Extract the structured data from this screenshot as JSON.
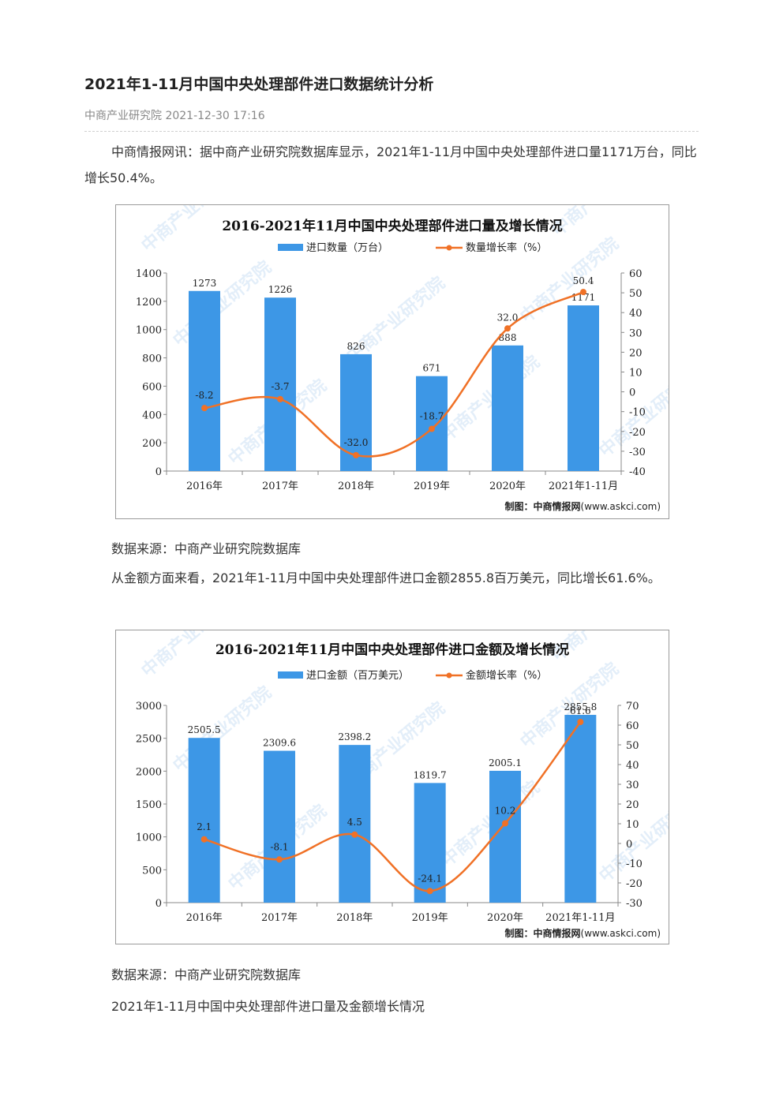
{
  "article": {
    "title": "2021年1-11月中国中央处理部件进口数据统计分析",
    "meta": "中商产业研究院 2021-12-30 17:16",
    "para1": "中商情报网讯：据中商产业研究院数据库显示，2021年1-11月中国中央处理部件进口量1171万台，同比增长50.4%。",
    "source1": "数据来源：中商产业研究院数据库",
    "para2": "从金额方面来看，2021年1-11月中国中央处理部件进口金额2855.8百万美元，同比增长61.6%。",
    "source2": "数据来源：中商产业研究院数据库",
    "caption": "2021年1-11月中国中央处理部件进口量及金额增长情况"
  },
  "colors": {
    "bar": "#3d97e6",
    "line": "#f07126",
    "marker": "#f07126"
  },
  "watermark": "中商产业研究院",
  "chart_data": [
    {
      "type": "bar",
      "title": "2016-2021年11月中国中央处理部件进口量及增长情况",
      "categories": [
        "2016年",
        "2017年",
        "2018年",
        "2019年",
        "2020年",
        "2021年1-11月"
      ],
      "series": [
        {
          "name": "进口数量（万台）",
          "type": "bar",
          "axis": "left",
          "values": [
            1273,
            1226,
            826,
            671,
            888,
            1171
          ],
          "labels": [
            "1273",
            "1226",
            "826",
            "671",
            "888",
            "1171"
          ]
        },
        {
          "name": "数量增长率（%）",
          "type": "line",
          "axis": "right",
          "values": [
            -8.2,
            -3.7,
            -32.0,
            -18.7,
            32.0,
            50.4
          ],
          "labels": [
            "-8.2",
            "-3.7",
            "-32.0",
            "-18.7",
            "32.0",
            "50.4"
          ]
        }
      ],
      "ylim": [
        0,
        1400
      ],
      "yticks": [
        "0",
        "200",
        "400",
        "600",
        "800",
        "1000",
        "1200",
        "1400"
      ],
      "y2lim": [
        -40,
        60
      ],
      "y2ticks": [
        "-40",
        "-30",
        "-20",
        "-10",
        "0",
        "10",
        "20",
        "30",
        "40",
        "50",
        "60"
      ],
      "legend_position": "top",
      "grid": false,
      "credit_prefix": "制图：中商情报网",
      "credit_suffix": "(www.askci.com)"
    },
    {
      "type": "bar",
      "title": "2016-2021年11月中国中央处理部件进口金额及增长情况",
      "categories": [
        "2016年",
        "2017年",
        "2018年",
        "2019年",
        "2020年",
        "2021年1-11月"
      ],
      "series": [
        {
          "name": "进口金额（百万美元）",
          "type": "bar",
          "axis": "left",
          "values": [
            2505.5,
            2309.6,
            2398.2,
            1819.7,
            2005.1,
            2855.8
          ],
          "labels": [
            "2505.5",
            "2309.6",
            "2398.2",
            "1819.7",
            "2005.1",
            "2855.8"
          ]
        },
        {
          "name": "金额增长率（%）",
          "type": "line",
          "axis": "right",
          "values": [
            2.1,
            -8.1,
            4.5,
            -24.1,
            10.2,
            61.6
          ],
          "labels": [
            "2.1",
            "-8.1",
            "4.5",
            "-24.1",
            "10.2",
            "61.6"
          ]
        }
      ],
      "ylim": [
        0,
        3000
      ],
      "yticks": [
        "0",
        "500",
        "1000",
        "1500",
        "2000",
        "2500",
        "3000"
      ],
      "y2lim": [
        -30,
        70
      ],
      "y2ticks": [
        "-30",
        "-20",
        "-10",
        "0",
        "10",
        "20",
        "30",
        "40",
        "50",
        "60",
        "70"
      ],
      "legend_position": "top",
      "grid": false,
      "credit_prefix": "制图：中商情报网",
      "credit_suffix": "(www.askci.com)"
    }
  ]
}
